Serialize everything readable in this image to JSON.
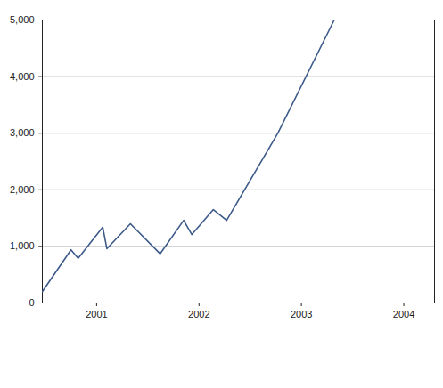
{
  "chart_data": {
    "type": "line",
    "x": [
      2000.47,
      2000.75,
      2000.82,
      2001.06,
      2001.1,
      2001.33,
      2001.62,
      2001.85,
      2001.93,
      2002.14,
      2002.27,
      2002.77,
      2003.32
    ],
    "values": [
      200,
      940,
      790,
      1340,
      960,
      1400,
      870,
      1460,
      1210,
      1650,
      1460,
      3000,
      5000
    ],
    "color": "#3d5a8a",
    "xlim": [
      2000.47,
      2004.3
    ],
    "xticks": [
      2001,
      2002,
      2003,
      2004
    ],
    "ylim": [
      0,
      5000
    ],
    "yticks": [
      0,
      {
        "value": 1000,
        "label": "1,000"
      },
      {
        "value": 2000,
        "label": "2,000"
      },
      {
        "value": 3000,
        "label": "3,000"
      },
      {
        "value": 4000,
        "label": "4,000"
      },
      {
        "value": 5000,
        "label": "5,000"
      }
    ],
    "grid": true
  }
}
